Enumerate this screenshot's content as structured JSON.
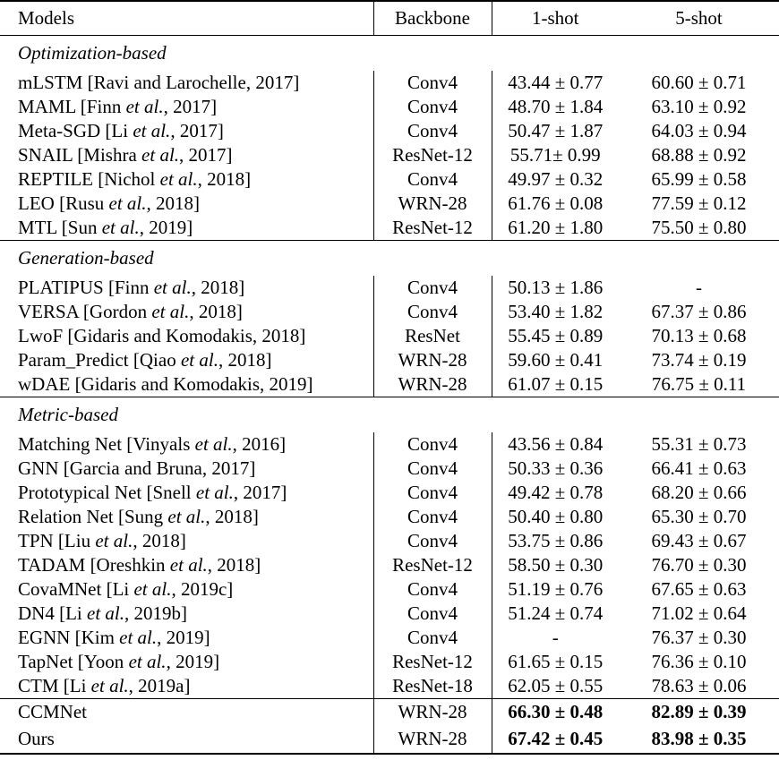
{
  "colors": {
    "background": "#ffffff",
    "text": "#000000",
    "rule": "#000000"
  },
  "table": {
    "header": {
      "models": "Models",
      "backbone": "Backbone",
      "one_shot": "1-shot",
      "five_shot": "5-shot"
    },
    "sections": [
      {
        "label": "Optimization-based",
        "highlight": false,
        "rows": [
          {
            "name_parts": [
              "mLSTM [Ravi and Larochelle, 2017]",
              "",
              ""
            ],
            "backbone": "Conv4",
            "one_shot": "43.44 ± 0.77",
            "five_shot": "60.60 ± 0.71"
          },
          {
            "name_parts": [
              "MAML [Finn ",
              "et al.",
              ", 2017]"
            ],
            "backbone": "Conv4",
            "one_shot": "48.70 ± 1.84",
            "five_shot": "63.10 ± 0.92"
          },
          {
            "name_parts": [
              "Meta-SGD [Li ",
              "et al.",
              ", 2017]"
            ],
            "backbone": "Conv4",
            "one_shot": "50.47 ± 1.87",
            "five_shot": "64.03 ± 0.94"
          },
          {
            "name_parts": [
              "SNAIL [Mishra ",
              "et al.",
              ", 2017]"
            ],
            "backbone": "ResNet-12",
            "one_shot": "55.71± 0.99",
            "five_shot": "68.88 ± 0.92"
          },
          {
            "name_parts": [
              "REPTILE [Nichol ",
              "et al.",
              ", 2018]"
            ],
            "backbone": "Conv4",
            "one_shot": "49.97 ± 0.32",
            "five_shot": "65.99 ± 0.58"
          },
          {
            "name_parts": [
              "LEO [Rusu ",
              "et al.",
              ", 2018]"
            ],
            "backbone": "WRN-28",
            "one_shot": "61.76 ± 0.08",
            "five_shot": "77.59 ± 0.12"
          },
          {
            "name_parts": [
              "MTL [Sun ",
              "et al.",
              ", 2019]"
            ],
            "backbone": "ResNet-12",
            "one_shot": "61.20 ± 1.80",
            "five_shot": "75.50 ± 0.80"
          }
        ]
      },
      {
        "label": "Generation-based",
        "highlight": false,
        "rows": [
          {
            "name_parts": [
              "PLATIPUS [Finn ",
              "et al.",
              ", 2018]"
            ],
            "backbone": "Conv4",
            "one_shot": "50.13 ± 1.86",
            "five_shot": "-"
          },
          {
            "name_parts": [
              "VERSA [Gordon ",
              "et al.",
              ", 2018]"
            ],
            "backbone": "Conv4",
            "one_shot": "53.40 ± 1.82",
            "five_shot": "67.37 ± 0.86"
          },
          {
            "name_parts": [
              "LwoF [Gidaris and Komodakis, 2018]",
              "",
              ""
            ],
            "backbone": "ResNet",
            "one_shot": "55.45 ± 0.89",
            "five_shot": "70.13 ± 0.68"
          },
          {
            "name_parts": [
              "Param_Predict [Qiao ",
              "et al.",
              ", 2018]"
            ],
            "backbone": "WRN-28",
            "one_shot": "59.60 ± 0.41",
            "five_shot": "73.74 ± 0.19"
          },
          {
            "name_parts": [
              "wDAE [Gidaris and Komodakis, 2019]",
              "",
              ""
            ],
            "backbone": "WRN-28",
            "one_shot": "61.07 ± 0.15",
            "five_shot": "76.75 ± 0.11"
          }
        ]
      },
      {
        "label": "Metric-based",
        "highlight": false,
        "rows": [
          {
            "name_parts": [
              "Matching Net [Vinyals ",
              "et al.",
              ", 2016]"
            ],
            "backbone": "Conv4",
            "one_shot": "43.56 ± 0.84",
            "five_shot": "55.31 ± 0.73"
          },
          {
            "name_parts": [
              "GNN [Garcia and Bruna, 2017]",
              "",
              ""
            ],
            "backbone": "Conv4",
            "one_shot": "50.33 ± 0.36",
            "five_shot": "66.41 ± 0.63"
          },
          {
            "name_parts": [
              "Prototypical Net [Snell ",
              "et al.",
              ", 2017]"
            ],
            "backbone": "Conv4",
            "one_shot": "49.42 ± 0.78",
            "five_shot": "68.20 ± 0.66"
          },
          {
            "name_parts": [
              "Relation Net [Sung ",
              "et al.",
              ", 2018]"
            ],
            "backbone": "Conv4",
            "one_shot": "50.40 ± 0.80",
            "five_shot": "65.30 ± 0.70"
          },
          {
            "name_parts": [
              "TPN [Liu ",
              "et al.",
              ", 2018]"
            ],
            "backbone": "Conv4",
            "one_shot": "53.75 ± 0.86",
            "five_shot": "69.43 ± 0.67"
          },
          {
            "name_parts": [
              "TADAM [Oreshkin ",
              "et al.",
              ", 2018]"
            ],
            "backbone": "ResNet-12",
            "one_shot": "58.50 ± 0.30",
            "five_shot": "76.70 ± 0.30"
          },
          {
            "name_parts": [
              "CovaMNet [Li ",
              "et al.",
              ", 2019c]"
            ],
            "backbone": "Conv4",
            "one_shot": "51.19 ± 0.76",
            "five_shot": "67.65 ± 0.63"
          },
          {
            "name_parts": [
              "DN4 [Li ",
              "et al.",
              ", 2019b]"
            ],
            "backbone": "Conv4",
            "one_shot": "51.24 ± 0.74",
            "five_shot": "71.02 ± 0.64"
          },
          {
            "name_parts": [
              "EGNN [Kim ",
              "et al.",
              ", 2019]"
            ],
            "backbone": "Conv4",
            "one_shot": "-",
            "five_shot": "76.37 ± 0.30"
          },
          {
            "name_parts": [
              "TapNet [Yoon ",
              "et al.",
              ", 2019]"
            ],
            "backbone": "ResNet-12",
            "one_shot": "61.65 ± 0.15",
            "five_shot": "76.36 ± 0.10"
          },
          {
            "name_parts": [
              "CTM [Li ",
              "et al.",
              ", 2019a]"
            ],
            "backbone": "ResNet-18",
            "one_shot": "62.05 ± 0.55",
            "five_shot": "78.63 ± 0.06"
          }
        ]
      },
      {
        "label": "",
        "highlight": true,
        "rows": [
          {
            "name_parts": [
              "CCMNet",
              "",
              ""
            ],
            "backbone": "WRN-28",
            "one_shot": "66.30 ± 0.48",
            "five_shot": "82.89 ± 0.39"
          },
          {
            "name_parts": [
              "Ours",
              "",
              ""
            ],
            "backbone": "WRN-28",
            "one_shot": "67.42 ± 0.45",
            "five_shot": "83.98 ± 0.35"
          }
        ]
      }
    ]
  }
}
